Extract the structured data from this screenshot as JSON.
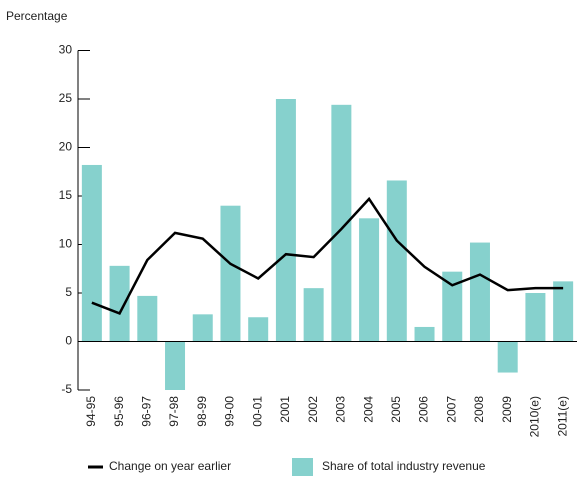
{
  "chart_data": {
    "type": "bar_line",
    "y_label": "Percentage",
    "categories": [
      "94-95",
      "95-96",
      "96-97",
      "97-98",
      "98-99",
      "99-00",
      "00-01",
      "2001",
      "2002",
      "2003",
      "2004",
      "2005",
      "2006",
      "2007",
      "2008",
      "2009",
      "2010(e)",
      "2011(e)"
    ],
    "series": [
      {
        "name": "Share of total industry revenue",
        "type": "bar",
        "color": "#86d1cd",
        "values": [
          18.2,
          7.8,
          4.7,
          -5,
          2.8,
          14.0,
          2.5,
          25.0,
          5.5,
          24.4,
          12.7,
          16.6,
          1.5,
          7.2,
          10.2,
          -3.2,
          5.0,
          6.2
        ]
      },
      {
        "name": "Change on year earlier",
        "type": "line",
        "color": "#000000",
        "values": [
          4.0,
          2.9,
          8.4,
          11.2,
          10.6,
          8.0,
          6.5,
          9.0,
          8.7,
          11.6,
          14.7,
          10.4,
          7.7,
          5.8,
          6.9,
          5.3,
          5.5,
          5.5
        ]
      }
    ],
    "ylim": [
      -5,
      30
    ],
    "yticks": [
      -5,
      0,
      5,
      10,
      15,
      20,
      25,
      30
    ]
  }
}
